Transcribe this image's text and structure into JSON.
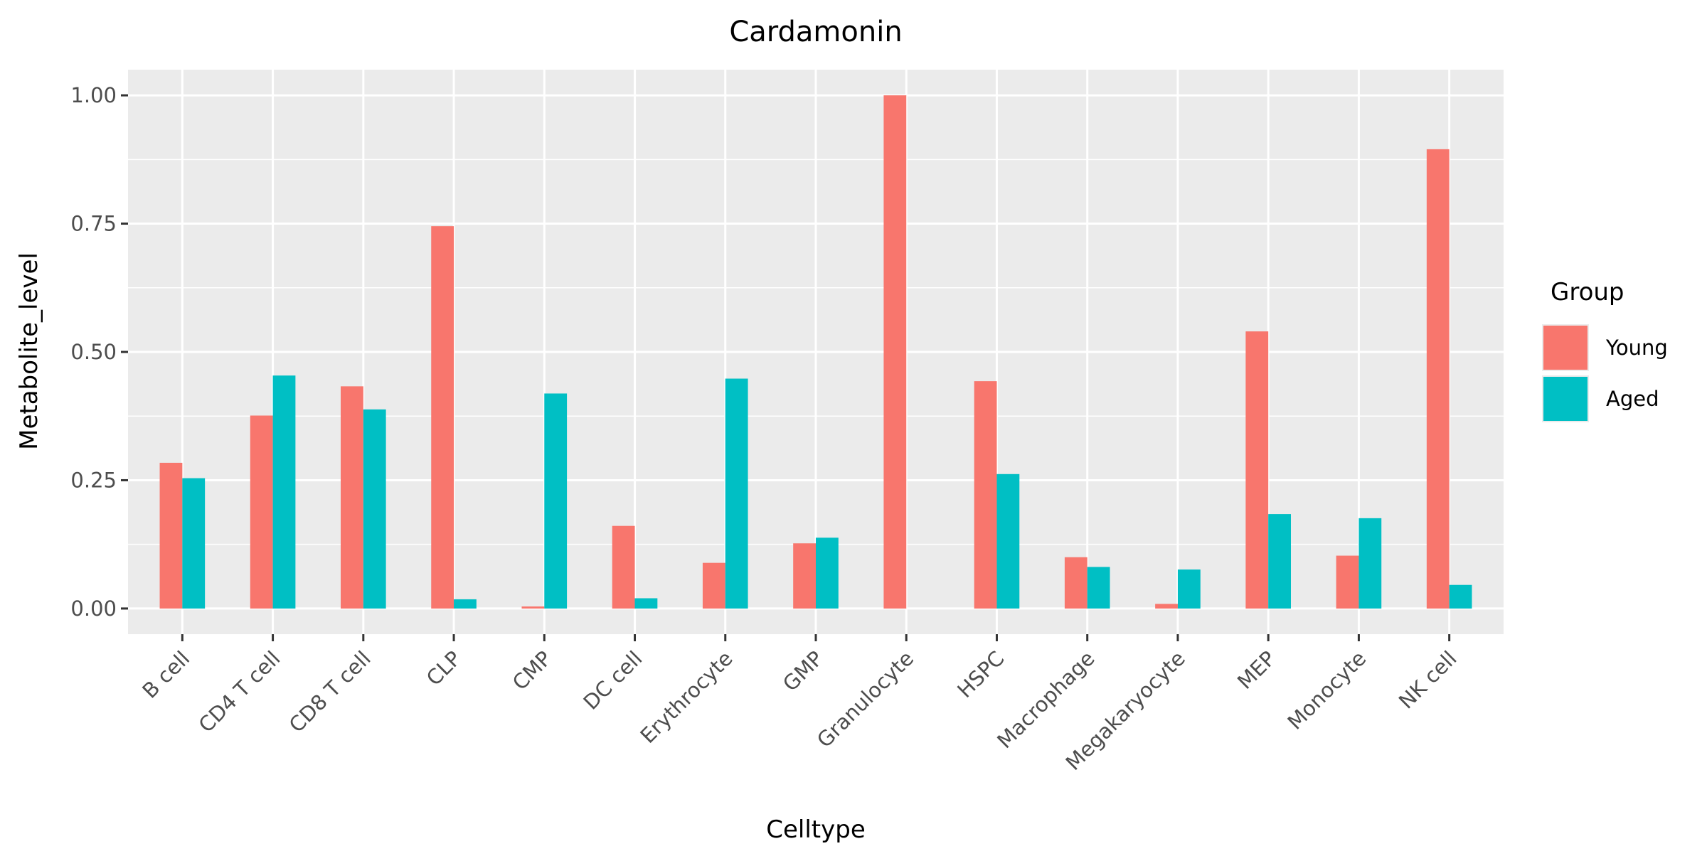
{
  "chart_data": {
    "type": "bar",
    "title": "Cardamonin",
    "xlabel": "Celltype",
    "ylabel": "Metabolite_level",
    "ylim": [
      -0.05,
      1.05
    ],
    "yticks": [
      0.0,
      0.25,
      0.5,
      0.75,
      1.0
    ],
    "ytick_labels": [
      "0.00",
      "0.25",
      "0.50",
      "0.75",
      "1.00"
    ],
    "grid": true,
    "legend": {
      "title": "Group",
      "position": "right"
    },
    "categories": [
      "B cell",
      "CD4 T cell",
      "CD8 T cell",
      "CLP",
      "CMP",
      "DC cell",
      "Erythrocyte",
      "GMP",
      "Granulocyte",
      "HSPC",
      "Macrophage",
      "Megakaryocyte",
      "MEP",
      "Monocyte",
      "NK cell"
    ],
    "series": [
      {
        "name": "Young",
        "color": "#F8766D",
        "values": [
          0.284,
          0.376,
          0.433,
          0.745,
          0.004,
          0.161,
          0.089,
          0.127,
          1.0,
          0.443,
          0.1,
          0.009,
          0.54,
          0.103,
          0.895
        ]
      },
      {
        "name": "Aged",
        "color": "#00BFC4",
        "values": [
          0.254,
          0.454,
          0.388,
          0.018,
          0.419,
          0.02,
          0.448,
          0.138,
          0.0,
          0.262,
          0.081,
          0.076,
          0.184,
          0.176,
          0.046
        ]
      }
    ]
  },
  "style": {
    "panel_bg": "#EBEBEB",
    "grid_color": "#FFFFFF",
    "tick_color": "#333333",
    "tick_label_color": "#4D4D4D"
  }
}
